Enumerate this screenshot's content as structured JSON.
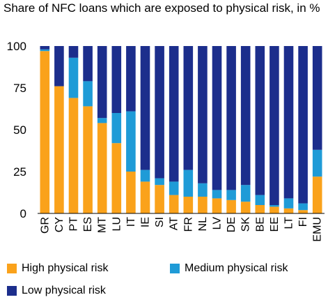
{
  "chart_data": {
    "type": "bar",
    "stacked": true,
    "title": "Share of NFC loans which are exposed to physical risk, in %",
    "xlabel": "",
    "ylabel": "",
    "ylim": [
      0,
      100
    ],
    "yticks": [
      0,
      25,
      50,
      75,
      100
    ],
    "grid": false,
    "legend_position": "bottom",
    "categories": [
      "GR",
      "CY",
      "PT",
      "ES",
      "MT",
      "LU",
      "IT",
      "IE",
      "SI",
      "AT",
      "FR",
      "NL",
      "LV",
      "DE",
      "SK",
      "BE",
      "EE",
      "LT",
      "FI",
      "EMU"
    ],
    "series": [
      {
        "name": "High physical risk",
        "color": "#FAA21B",
        "values": [
          97,
          76,
          69,
          64,
          54,
          42,
          25,
          19,
          17,
          11,
          10,
          10,
          9,
          8,
          7,
          5,
          4,
          3,
          2,
          22
        ]
      },
      {
        "name": "Medium physical risk",
        "color": "#1F9BD7",
        "values": [
          1,
          0,
          24,
          15,
          3,
          18,
          36,
          7,
          4,
          8,
          16,
          8,
          5,
          6,
          10,
          6,
          1,
          6,
          4,
          16
        ]
      },
      {
        "name": "Low physical risk",
        "color": "#1C2E8C",
        "values": [
          2,
          24,
          7,
          21,
          43,
          40,
          39,
          74,
          79,
          81,
          74,
          82,
          86,
          86,
          83,
          89,
          95,
          91,
          94,
          62
        ]
      }
    ]
  }
}
